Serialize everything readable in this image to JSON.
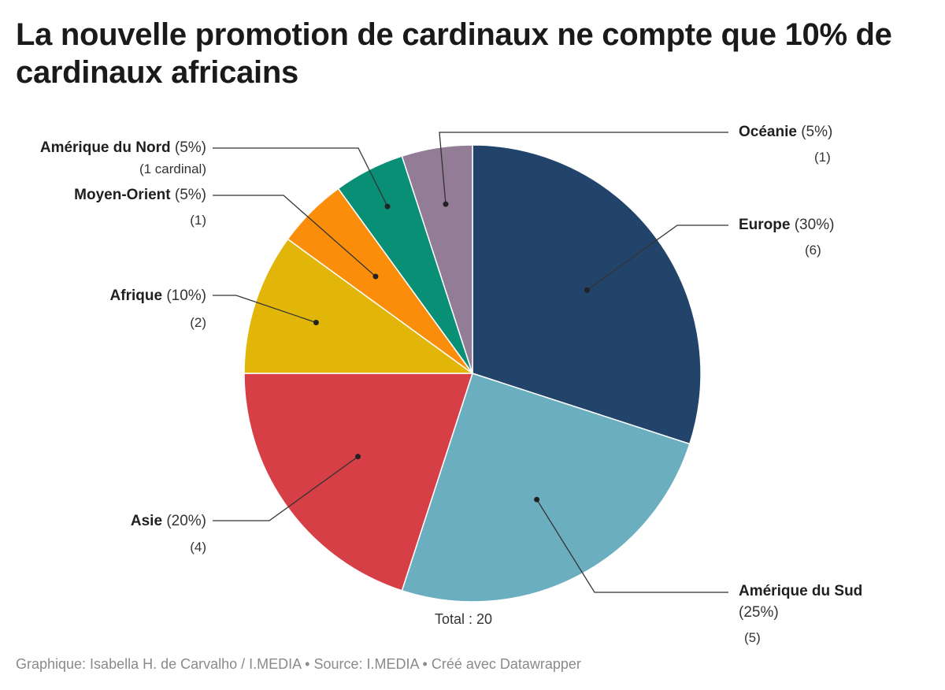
{
  "title": "La nouvelle promotion de cardinaux ne compte que 10% de cardinaux africains",
  "total_label": "Total : 20",
  "footer": "Graphique: Isabella H. de Carvalho / I.MEDIA • Source: I.MEDIA • Créé avec Datawrapper",
  "chart_data": {
    "type": "pie",
    "total": 20,
    "slices": [
      {
        "name": "Europe",
        "value": 6,
        "percent": "(30%)",
        "count_label": "(6)",
        "color": "#22446a"
      },
      {
        "name": "Amérique du Sud",
        "value": 5,
        "percent": "(25%)",
        "count_label": "(5)",
        "color": "#6aaec0"
      },
      {
        "name": "Asie",
        "value": 4,
        "percent": "(20%)",
        "count_label": "(4)",
        "color": "#d73f46"
      },
      {
        "name": "Afrique",
        "value": 2,
        "percent": "(10%)",
        "count_label": "(2)",
        "color": "#e2b609"
      },
      {
        "name": "Moyen-Orient",
        "value": 1,
        "percent": "(5%)",
        "count_label": "(1)",
        "color": "#fa8e0b"
      },
      {
        "name": "Amérique du Nord",
        "value": 1,
        "percent": "(5%)",
        "count_label": "(1 cardinal)",
        "color": "#0a8f77"
      },
      {
        "name": "Océanie",
        "value": 1,
        "percent": "(5%)",
        "count_label": "(1)",
        "color": "#927c96"
      }
    ]
  }
}
